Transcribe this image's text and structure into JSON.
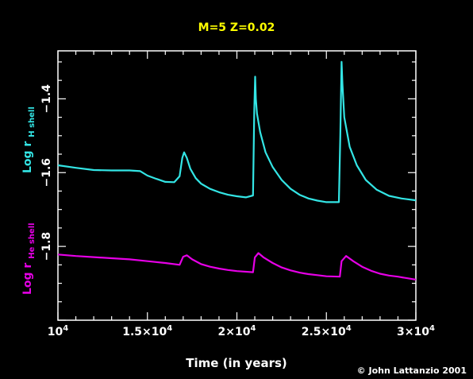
{
  "chart_data": {
    "type": "line",
    "title": "M=5 Z=0.02",
    "xlabel": "Time (in years)",
    "xlim": [
      10000,
      30000
    ],
    "ylim": [
      -2.0,
      -1.27
    ],
    "x_ticks": [
      {
        "value": 10000,
        "base": "10",
        "exp": "4"
      },
      {
        "value": 15000,
        "base": "1.5×10",
        "exp": "4"
      },
      {
        "value": 20000,
        "base": "2×10",
        "exp": "4"
      },
      {
        "value": 25000,
        "base": "2.5×10",
        "exp": "4"
      },
      {
        "value": 30000,
        "base": "3×10",
        "exp": "4"
      }
    ],
    "y_ticks": [
      {
        "value": -1.4,
        "label": "−1.4"
      },
      {
        "value": -1.6,
        "label": "−1.6"
      },
      {
        "value": -1.8,
        "label": "−1.8"
      }
    ],
    "series": [
      {
        "name": "Log r H shell",
        "label_main": "Log r",
        "label_sub": "H shell",
        "color": "#33e5e5",
        "points": [
          [
            10000,
            -1.58
          ],
          [
            11000,
            -1.587
          ],
          [
            12000,
            -1.593
          ],
          [
            13000,
            -1.594
          ],
          [
            14000,
            -1.594
          ],
          [
            14600,
            -1.596
          ],
          [
            15000,
            -1.608
          ],
          [
            15500,
            -1.617
          ],
          [
            16000,
            -1.625
          ],
          [
            16500,
            -1.626
          ],
          [
            16800,
            -1.61
          ],
          [
            16950,
            -1.56
          ],
          [
            17050,
            -1.545
          ],
          [
            17200,
            -1.56
          ],
          [
            17400,
            -1.59
          ],
          [
            17700,
            -1.615
          ],
          [
            18000,
            -1.63
          ],
          [
            18500,
            -1.644
          ],
          [
            19000,
            -1.653
          ],
          [
            19500,
            -1.66
          ],
          [
            20000,
            -1.664
          ],
          [
            20500,
            -1.667
          ],
          [
            20900,
            -1.662
          ],
          [
            20970,
            -1.43
          ],
          [
            21020,
            -1.34
          ],
          [
            21060,
            -1.4
          ],
          [
            21120,
            -1.44
          ],
          [
            21300,
            -1.49
          ],
          [
            21600,
            -1.545
          ],
          [
            22000,
            -1.585
          ],
          [
            22500,
            -1.62
          ],
          [
            23000,
            -1.644
          ],
          [
            23500,
            -1.66
          ],
          [
            24000,
            -1.67
          ],
          [
            24500,
            -1.676
          ],
          [
            25000,
            -1.68
          ],
          [
            25700,
            -1.68
          ],
          [
            25780,
            -1.5
          ],
          [
            25850,
            -1.3
          ],
          [
            25900,
            -1.36
          ],
          [
            26000,
            -1.45
          ],
          [
            26300,
            -1.53
          ],
          [
            26700,
            -1.58
          ],
          [
            27200,
            -1.62
          ],
          [
            27800,
            -1.646
          ],
          [
            28500,
            -1.663
          ],
          [
            29200,
            -1.67
          ],
          [
            30000,
            -1.675
          ]
        ]
      },
      {
        "name": "Log r He shell",
        "label_main": "Log r",
        "label_sub": "He shell",
        "color": "#e600e6",
        "points": [
          [
            10000,
            -1.822
          ],
          [
            11000,
            -1.826
          ],
          [
            12000,
            -1.829
          ],
          [
            13000,
            -1.832
          ],
          [
            14000,
            -1.835
          ],
          [
            15000,
            -1.84
          ],
          [
            16000,
            -1.845
          ],
          [
            16800,
            -1.85
          ],
          [
            17000,
            -1.828
          ],
          [
            17200,
            -1.824
          ],
          [
            17500,
            -1.835
          ],
          [
            18000,
            -1.848
          ],
          [
            18500,
            -1.855
          ],
          [
            19000,
            -1.86
          ],
          [
            19500,
            -1.864
          ],
          [
            20000,
            -1.867
          ],
          [
            20900,
            -1.87
          ],
          [
            21000,
            -1.83
          ],
          [
            21200,
            -1.818
          ],
          [
            21500,
            -1.83
          ],
          [
            22000,
            -1.845
          ],
          [
            22500,
            -1.857
          ],
          [
            23000,
            -1.865
          ],
          [
            23500,
            -1.871
          ],
          [
            24000,
            -1.875
          ],
          [
            24500,
            -1.878
          ],
          [
            25000,
            -1.881
          ],
          [
            25750,
            -1.882
          ],
          [
            25850,
            -1.84
          ],
          [
            26100,
            -1.826
          ],
          [
            26500,
            -1.84
          ],
          [
            27000,
            -1.855
          ],
          [
            27500,
            -1.866
          ],
          [
            28000,
            -1.874
          ],
          [
            28500,
            -1.879
          ],
          [
            29000,
            -1.882
          ],
          [
            29500,
            -1.886
          ],
          [
            30000,
            -1.89
          ]
        ]
      }
    ],
    "grid": false,
    "footer": "© John Lattanzio 2001"
  },
  "colors": {
    "background": "#000000",
    "axes": "#ffffff",
    "title": "#ffff00",
    "text": "#ffffff"
  }
}
